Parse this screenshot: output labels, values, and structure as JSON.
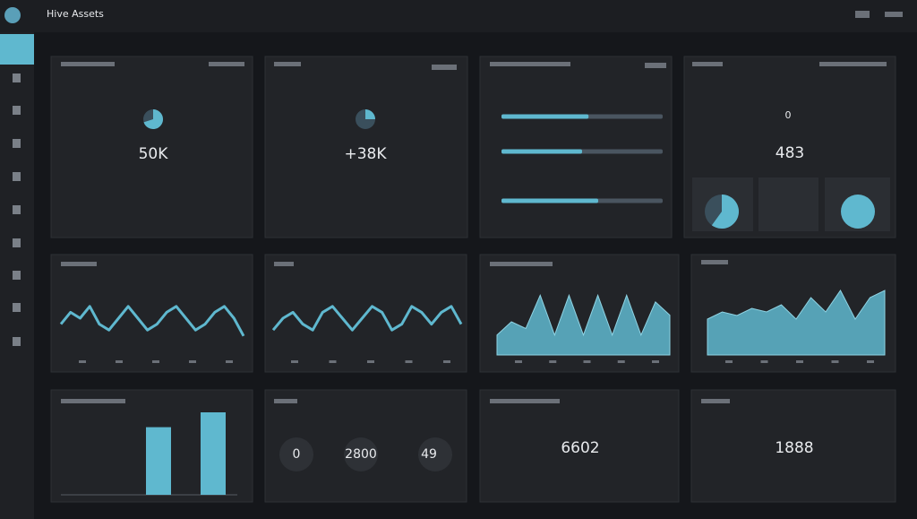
{
  "header": {
    "title": "Hive Assets"
  },
  "kpis": [
    {
      "value": "50K",
      "pie": 70
    },
    {
      "value": "+38K",
      "pie": 25
    }
  ],
  "progress": {
    "xlim": [
      0,
      100
    ],
    "values": [
      54,
      50,
      60
    ]
  },
  "summary": {
    "badge": "0",
    "value": "483",
    "pie": 60
  },
  "line_charts": [
    {
      "type": "line",
      "ylim": [
        0,
        10
      ],
      "values": [
        4,
        6,
        5,
        7,
        4,
        3,
        5,
        7,
        5,
        3,
        4,
        6,
        7,
        5,
        3,
        4,
        6,
        7,
        5,
        2
      ]
    },
    {
      "type": "line",
      "ylim": [
        0,
        10
      ],
      "values": [
        3,
        5,
        6,
        4,
        3,
        6,
        7,
        5,
        3,
        5,
        7,
        6,
        3,
        4,
        7,
        6,
        4,
        6,
        7,
        4
      ]
    },
    {
      "type": "area",
      "ylim": [
        0,
        10
      ],
      "values": [
        3,
        5,
        4,
        9,
        3,
        9,
        3,
        9,
        3,
        9,
        3,
        8,
        6
      ]
    },
    {
      "type": "area",
      "ylim": [
        0,
        10
      ],
      "values": [
        5,
        6,
        5.5,
        6.5,
        6,
        7,
        5,
        8,
        6,
        9,
        5,
        8,
        9
      ]
    }
  ],
  "bar_chart": {
    "ylim": [
      0,
      100
    ],
    "values": [
      82,
      100
    ]
  },
  "gauges": [
    {
      "value": "0"
    },
    {
      "value": "2800"
    },
    {
      "value": "49"
    }
  ],
  "stats": [
    {
      "value": "6602"
    },
    {
      "value": "1888"
    }
  ]
}
